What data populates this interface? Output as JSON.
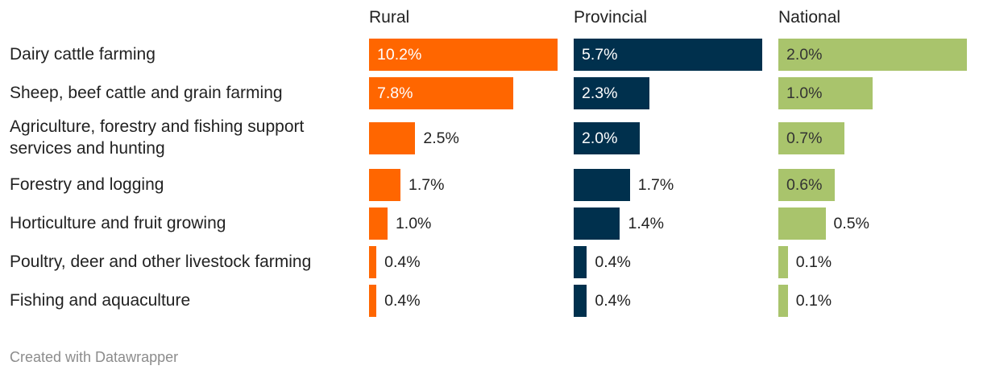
{
  "chart_data": {
    "type": "bar",
    "orientation": "horizontal",
    "layout": "small-multiples",
    "categories": [
      "Dairy cattle farming",
      "Sheep, beef cattle and grain farming",
      "Agriculture, forestry and fishing support services and hunting",
      "Forestry and logging",
      "Horticulture and fruit growing",
      "Poultry, deer and other livestock farming",
      "Fishing and aquaculture"
    ],
    "series": [
      {
        "name": "Rural",
        "color": "#ff6600",
        "label_color_inside": "#ffffff",
        "values": [
          10.2,
          7.8,
          2.5,
          1.7,
          1.0,
          0.4,
          0.4
        ],
        "labels": [
          "10.2%",
          "7.8%",
          "2.5%",
          "1.7%",
          "1.0%",
          "0.4%",
          "0.4%"
        ]
      },
      {
        "name": "Provincial",
        "color": "#00304d",
        "label_color_inside": "#ffffff",
        "values": [
          5.7,
          2.3,
          2.0,
          1.7,
          1.4,
          0.4,
          0.4
        ],
        "labels": [
          "5.7%",
          "2.3%",
          "2.0%",
          "1.7%",
          "1.4%",
          "0.4%",
          "0.4%"
        ]
      },
      {
        "name": "National",
        "color": "#a9c46c",
        "label_color_inside": "#333333",
        "values": [
          2.0,
          1.0,
          0.7,
          0.6,
          0.5,
          0.1,
          0.1
        ],
        "labels": [
          "2.0%",
          "1.0%",
          "0.7%",
          "0.6%",
          "0.5%",
          "0.1%",
          "0.1%"
        ]
      }
    ],
    "xlabel": "",
    "ylabel": "",
    "grid": false,
    "legend": "none"
  },
  "footer": {
    "credit": "Created with Datawrapper"
  }
}
